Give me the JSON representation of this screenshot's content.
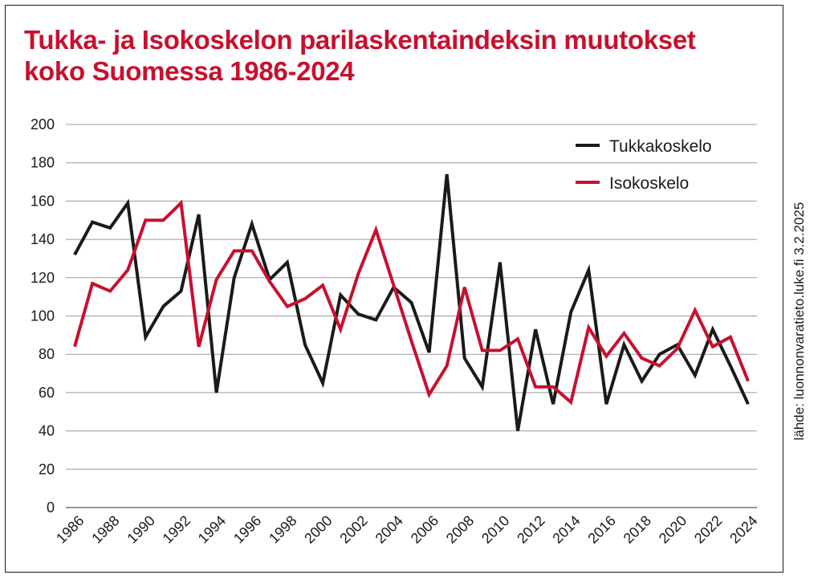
{
  "chart_data": {
    "type": "line",
    "title_lines": [
      "Tukka- ja Isokoskelon parilaskentaindeksin muutokset",
      "koko Suomessa 1986-2024"
    ],
    "source": "lähde: luonnonvaratieto.luke.fi 3.2.2025",
    "xlabel": "",
    "ylabel": "",
    "ylim": [
      0,
      200
    ],
    "yticks": [
      "0",
      "20",
      "40",
      "60",
      "80",
      "100",
      "120",
      "140",
      "160",
      "180",
      "200"
    ],
    "xticks": [
      "1986",
      "1988",
      "1990",
      "1992",
      "1994",
      "1996",
      "1998",
      "2000",
      "2002",
      "2004",
      "2006",
      "2008",
      "2010",
      "2012",
      "2014",
      "2016",
      "2018",
      "2020",
      "2022",
      "2024"
    ],
    "grid": true,
    "legend_position": "top-right",
    "x": [
      1986,
      1987,
      1988,
      1989,
      1990,
      1991,
      1992,
      1993,
      1994,
      1995,
      1996,
      1997,
      1998,
      1999,
      2000,
      2001,
      2002,
      2003,
      2004,
      2005,
      2006,
      2007,
      2008,
      2009,
      2010,
      2011,
      2012,
      2013,
      2014,
      2015,
      2016,
      2017,
      2018,
      2019,
      2020,
      2021,
      2022,
      2023,
      2024
    ],
    "series": [
      {
        "name": "Tukkakoskelo",
        "color": "#1a1a18",
        "values": [
          132,
          149,
          146,
          159,
          89,
          105,
          113,
          153,
          60,
          120,
          148,
          119,
          128,
          85,
          65,
          111,
          101,
          98,
          115,
          107,
          81,
          174,
          78,
          63,
          128,
          40,
          93,
          54,
          102,
          124,
          54,
          85,
          66,
          80,
          85,
          69,
          93,
          74,
          54
        ]
      },
      {
        "name": "Isokoskelo",
        "color": "#c8102e",
        "values": [
          84,
          117,
          113,
          124,
          150,
          150,
          159,
          84,
          119,
          134,
          134,
          118,
          105,
          109,
          116,
          93,
          122,
          145,
          116,
          87,
          59,
          74,
          115,
          82,
          82,
          88,
          63,
          63,
          55,
          94,
          79,
          91,
          78,
          74,
          83,
          103,
          84,
          89,
          66
        ]
      }
    ]
  }
}
